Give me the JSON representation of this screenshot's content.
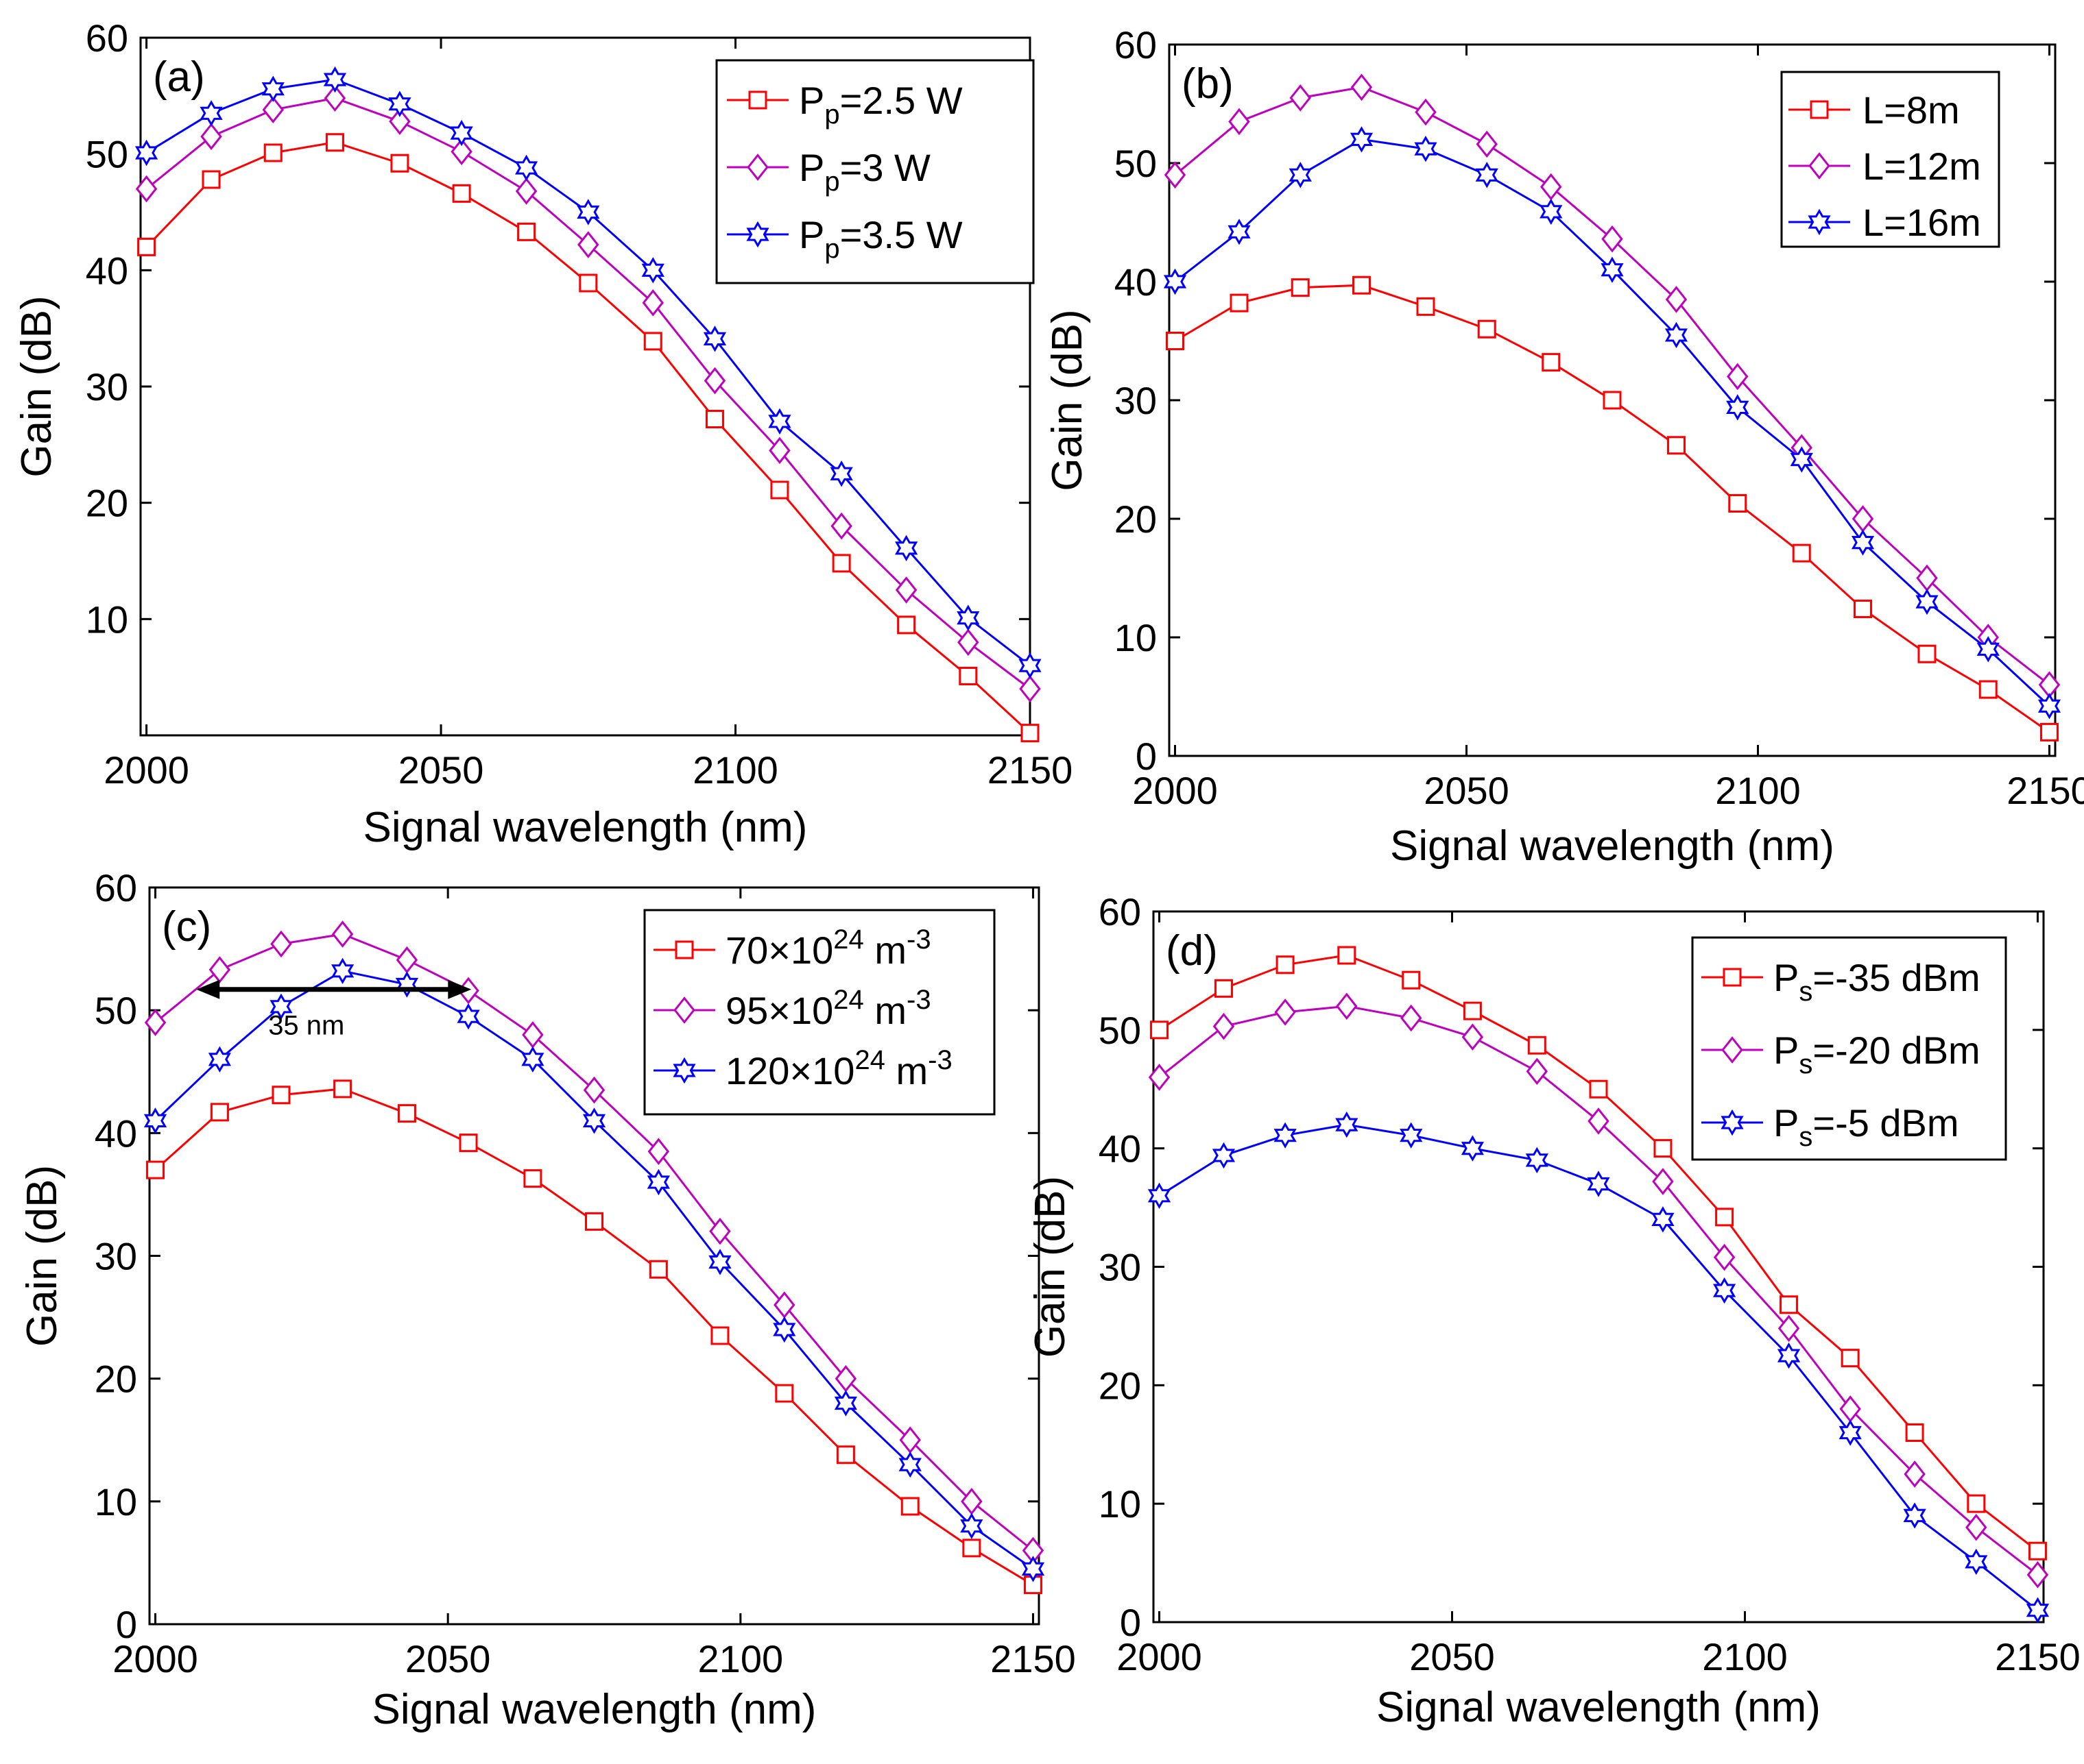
{
  "chart_data": [
    {
      "type": "line",
      "panel_label": "(a)",
      "xlabel": "Signal wavelength (nm)",
      "ylabel": "Gain (dB)",
      "xlim": [
        1999,
        2150
      ],
      "ylim": [
        0,
        60
      ],
      "xticks": [
        "2000",
        "2050",
        "2100",
        "2150"
      ],
      "yticks": [
        "10",
        "20",
        "30",
        "40",
        "50",
        "60"
      ],
      "legend_position": "top-right",
      "x": [
        2000,
        2011,
        2021.5,
        2032,
        2043,
        2053.5,
        2064.5,
        2075,
        2086,
        2096.5,
        2107.5,
        2118,
        2129,
        2139.5,
        2150
      ],
      "series": [
        {
          "name": "P_p=2.5 W",
          "label_parts": [
            "P",
            "p",
            "=2.5 W"
          ],
          "color": "#ff0000",
          "marker": "square",
          "values": [
            42,
            47.8,
            50.1,
            51,
            49.2,
            46.6,
            43.3,
            38.9,
            33.9,
            27.2,
            21.1,
            14.8,
            9.5,
            5.1,
            0.2
          ]
        },
        {
          "name": "P_p=3 W",
          "label_parts": [
            "P",
            "p",
            "=3 W"
          ],
          "color": "#bf00bf",
          "marker": "diamond",
          "values": [
            47,
            51.5,
            53.8,
            54.8,
            52.8,
            50.2,
            46.8,
            42.2,
            37.2,
            30.5,
            24.5,
            18,
            12.5,
            8,
            4
          ]
        },
        {
          "name": "P_p=3.5 W",
          "label_parts": [
            "P",
            "p",
            "=3.5 W"
          ],
          "color": "#0000ff",
          "marker": "hexagram",
          "values": [
            50.1,
            53.5,
            55.6,
            56.4,
            54.3,
            51.8,
            48.8,
            45,
            40,
            34.1,
            27,
            22.5,
            16.1,
            10.1,
            6
          ]
        }
      ]
    },
    {
      "type": "line",
      "panel_label": "(b)",
      "xlabel": "Signal wavelength (nm)",
      "ylabel": "Gain (dB)",
      "xlim": [
        1999,
        2151
      ],
      "ylim": [
        0,
        60
      ],
      "xticks": [
        "2000",
        "2050",
        "2100",
        "2150"
      ],
      "yticks": [
        "0",
        "10",
        "20",
        "30",
        "40",
        "50",
        "60"
      ],
      "legend_position": "top-right",
      "x": [
        2000,
        2011,
        2021.5,
        2032,
        2043,
        2053.5,
        2064.5,
        2075,
        2086,
        2096.5,
        2107.5,
        2118,
        2129,
        2139.5,
        2150
      ],
      "series": [
        {
          "name": "L=8m",
          "label_parts": [
            "L=8m",
            "",
            ""
          ],
          "color": "#ff0000",
          "marker": "square",
          "values": [
            35,
            38.2,
            39.5,
            39.7,
            37.9,
            36,
            33.2,
            30,
            26.2,
            21.3,
            17.1,
            12.4,
            8.6,
            5.6,
            2
          ]
        },
        {
          "name": "L=12m",
          "label_parts": [
            "L=12m",
            "",
            ""
          ],
          "color": "#bf00bf",
          "marker": "diamond",
          "values": [
            49,
            53.5,
            55.5,
            56.4,
            54.3,
            51.6,
            48,
            43.6,
            38.5,
            32,
            26,
            20,
            15,
            10,
            6
          ]
        },
        {
          "name": "L=16m",
          "label_parts": [
            "L=16m",
            "",
            ""
          ],
          "color": "#0000ff",
          "marker": "hexagram",
          "values": [
            40,
            44.2,
            49,
            52,
            51.2,
            49,
            45.9,
            41,
            35.5,
            29.4,
            25,
            18,
            13,
            9,
            4.2
          ]
        }
      ]
    },
    {
      "type": "line",
      "panel_label": "(c)",
      "xlabel": "Signal wavelength (nm)",
      "ylabel": "Gain (dB)",
      "xlim": [
        1999,
        2151
      ],
      "ylim": [
        0,
        60
      ],
      "xticks": [
        "2000",
        "2050",
        "2100",
        "2150"
      ],
      "yticks": [
        "0",
        "10",
        "20",
        "30",
        "40",
        "50",
        "60"
      ],
      "legend_position": "top-right",
      "annotation": {
        "text": "35 nm",
        "x_from": 2007,
        "x_to": 2054,
        "y": 51.7
      },
      "x": [
        2000,
        2011,
        2021.5,
        2032,
        2043,
        2053.5,
        2064.5,
        2075,
        2086,
        2096.5,
        2107.5,
        2118,
        2129,
        2139.5,
        2150
      ],
      "series": [
        {
          "name": "70×10^24 m^-3",
          "label_parts": [
            "70×10",
            "24",
            " m",
            "-3"
          ],
          "color": "#ff0000",
          "marker": "square",
          "values": [
            37,
            41.7,
            43.1,
            43.6,
            41.6,
            39.2,
            36.3,
            32.8,
            28.9,
            23.5,
            18.8,
            13.8,
            9.6,
            6.2,
            3.2
          ]
        },
        {
          "name": "95×10^24 m^-3",
          "label_parts": [
            "95×10",
            "24",
            " m",
            "-3"
          ],
          "color": "#bf00bf",
          "marker": "diamond",
          "values": [
            49,
            53.3,
            55.4,
            56.2,
            54.1,
            51.6,
            48,
            43.5,
            38.5,
            32,
            26,
            20,
            15,
            10,
            6
          ]
        },
        {
          "name": "120×10^24 m^-3",
          "label_parts": [
            "120×10",
            "24",
            " m",
            "-3"
          ],
          "color": "#0000ff",
          "marker": "hexagram",
          "values": [
            41,
            46,
            50.3,
            53.2,
            52.1,
            49.5,
            46,
            41,
            36,
            29.5,
            24,
            18,
            13,
            8,
            4.5
          ]
        }
      ]
    },
    {
      "type": "line",
      "panel_label": "(d)",
      "xlabel": "Signal wavelength (nm)",
      "ylabel": "Gain (dB)",
      "xlim": [
        1999,
        2151
      ],
      "ylim": [
        0,
        60
      ],
      "xticks": [
        "2000",
        "2050",
        "2100",
        "2150"
      ],
      "yticks": [
        "0",
        "10",
        "20",
        "30",
        "40",
        "50",
        "60"
      ],
      "legend_position": "top-right",
      "x": [
        2000,
        2011,
        2021.5,
        2032,
        2043,
        2053.5,
        2064.5,
        2075,
        2086,
        2096.5,
        2107.5,
        2118,
        2129,
        2139.5,
        2150
      ],
      "series": [
        {
          "name": "P_s=-35 dBm",
          "label_parts": [
            "P",
            "s",
            "=-35 dBm"
          ],
          "color": "#ff0000",
          "marker": "square",
          "values": [
            50,
            53.5,
            55.5,
            56.3,
            54.2,
            51.6,
            48.7,
            45,
            40,
            34.2,
            26.8,
            22.3,
            16,
            10,
            6
          ]
        },
        {
          "name": "P_s=-20 dBm",
          "label_parts": [
            "P",
            "s",
            "=-20 dBm"
          ],
          "color": "#bf00bf",
          "marker": "diamond",
          "values": [
            46,
            50.3,
            51.5,
            52,
            51,
            49.4,
            46.5,
            42.3,
            37.2,
            30.8,
            24.8,
            18,
            12.5,
            8,
            4
          ]
        },
        {
          "name": "P_s=-5 dBm",
          "label_parts": [
            "P",
            "s",
            "=-5 dBm"
          ],
          "color": "#0000ff",
          "marker": "hexagram",
          "values": [
            36,
            39.4,
            41.1,
            42,
            41.1,
            40,
            39,
            37,
            34,
            28,
            22.5,
            16,
            9,
            5.1,
            1
          ]
        }
      ]
    }
  ]
}
